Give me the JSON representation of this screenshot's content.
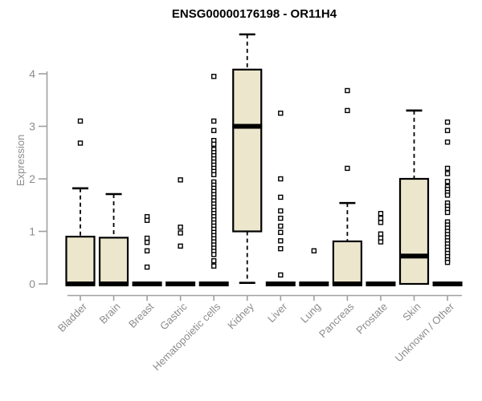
{
  "chart_data": {
    "type": "boxplot",
    "title": "ENSG00000176198 - OR11H4",
    "ylabel": "Expression",
    "xlabel": "",
    "ylim": [
      0,
      4
    ],
    "yticks": [
      0,
      1,
      2,
      3,
      4
    ],
    "grid": false,
    "legend": false,
    "box_fill": "#ece6cd",
    "box_stroke": "#000000",
    "axis_color": "#a0a0a0",
    "label_color": "#8c8c8c",
    "categories": [
      "Bladder",
      "Brain",
      "Breast",
      "Gastric",
      "Hematopoietic cells",
      "Kidney",
      "Liver",
      "Lung",
      "Pancreas",
      "Prostate",
      "Skin",
      "Unknown / Other"
    ],
    "groups": [
      {
        "category": "Bladder",
        "q1": 0,
        "median": 0,
        "q3": 0.9,
        "whisker_low": 0,
        "whisker_high": 1.82,
        "outliers": [
          3.1,
          2.68
        ]
      },
      {
        "category": "Brain",
        "q1": 0,
        "median": 0,
        "q3": 0.88,
        "whisker_low": 0,
        "whisker_high": 1.71,
        "outliers": []
      },
      {
        "category": "Breast",
        "q1": 0,
        "median": 0,
        "q3": 0,
        "whisker_low": 0,
        "whisker_high": 0,
        "outliers": [
          1.28,
          1.21,
          0.87,
          0.79,
          0.63,
          0.32
        ]
      },
      {
        "category": "Gastric",
        "q1": 0,
        "median": 0,
        "q3": 0,
        "whisker_low": 0,
        "whisker_high": 0,
        "outliers": [
          1.98,
          1.08,
          0.97,
          0.72
        ]
      },
      {
        "category": "Hematopoietic cells",
        "q1": 0,
        "median": 0,
        "q3": 0,
        "whisker_low": 0,
        "whisker_high": 0,
        "outliers": [
          3.95,
          3.1,
          2.92,
          2.73,
          2.66,
          2.56,
          2.5,
          2.44,
          2.38,
          2.32,
          2.26,
          2.2,
          2.14,
          2.08,
          1.94,
          1.88,
          1.82,
          1.76,
          1.7,
          1.64,
          1.58,
          1.52,
          1.46,
          1.4,
          1.34,
          1.28,
          1.22,
          1.16,
          1.1,
          1.04,
          0.98,
          0.92,
          0.86,
          0.8,
          0.74,
          0.68,
          0.62,
          0.56,
          0.44,
          0.34
        ]
      },
      {
        "category": "Kidney",
        "q1": 1.0,
        "median": 3.0,
        "q3": 4.08,
        "whisker_low": 0.02,
        "whisker_high": 4.75,
        "outliers": []
      },
      {
        "category": "Liver",
        "q1": 0,
        "median": 0,
        "q3": 0,
        "whisker_low": 0,
        "whisker_high": 0,
        "outliers": [
          3.25,
          2.0,
          1.65,
          1.39,
          1.25,
          1.1,
          0.98,
          0.82,
          0.67,
          0.17
        ]
      },
      {
        "category": "Lung",
        "q1": 0,
        "median": 0,
        "q3": 0,
        "whisker_low": 0,
        "whisker_high": 0,
        "outliers": [
          0.63
        ]
      },
      {
        "category": "Pancreas",
        "q1": 0,
        "median": 0,
        "q3": 0.81,
        "whisker_low": 0,
        "whisker_high": 1.54,
        "outliers": [
          3.68,
          3.3,
          2.2
        ]
      },
      {
        "category": "Prostate",
        "q1": 0,
        "median": 0,
        "q3": 0,
        "whisker_low": 0,
        "whisker_high": 0,
        "outliers": [
          1.34,
          1.25,
          1.17,
          0.95,
          0.87,
          0.8
        ]
      },
      {
        "category": "Skin",
        "q1": 0,
        "median": 0.53,
        "q3": 2.0,
        "whisker_low": 0,
        "whisker_high": 3.3,
        "outliers": []
      },
      {
        "category": "Unknown / Other",
        "q1": 0,
        "median": 0,
        "q3": 0,
        "whisker_low": 0,
        "whisker_high": 0,
        "outliers": [
          3.08,
          2.92,
          2.7,
          2.2,
          2.1,
          1.95,
          1.85,
          1.8,
          1.74,
          1.69,
          1.54,
          1.48,
          1.42,
          1.36,
          1.18,
          1.12,
          1.06,
          1.0,
          0.94,
          0.88,
          0.82,
          0.76,
          0.7,
          0.64,
          0.58,
          0.52,
          0.46,
          0.41
        ]
      }
    ]
  }
}
